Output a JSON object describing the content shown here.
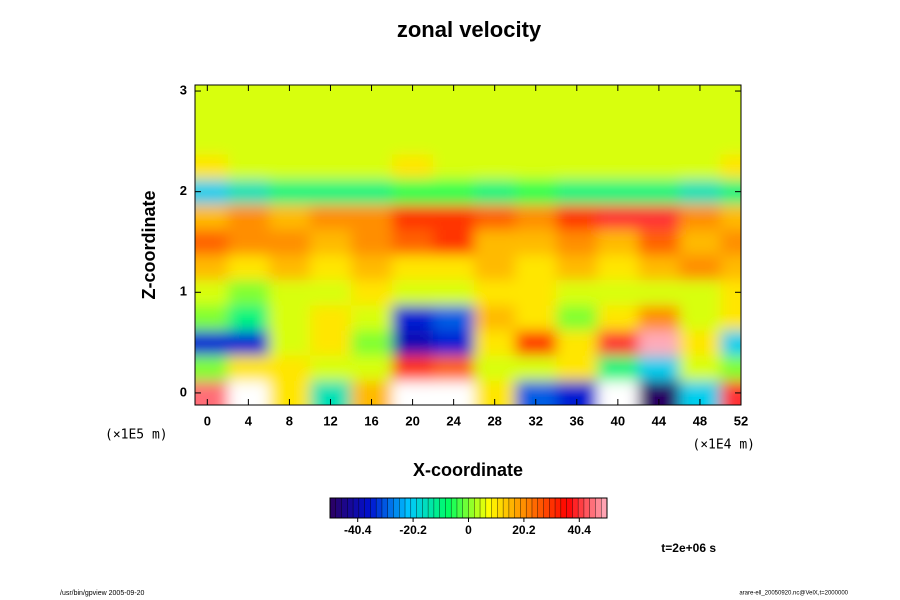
{
  "chart_data": {
    "type": "heatmap",
    "title": "zonal velocity",
    "x_label": "X-coordinate",
    "y_label": "Z-coordinate",
    "x_unit_note": "(×1E4 m)",
    "y_unit_note": "(×1E5 m)",
    "time_note": "t=2e+06 s",
    "footer_left": "/usr/bin/gpview 2005-09-20",
    "footer_right": "arare-ell_20050920.nc@VelX,t=2000000",
    "x": [
      0,
      4,
      8,
      12,
      16,
      20,
      24,
      28,
      32,
      36,
      40,
      44,
      48,
      52
    ],
    "y": [
      0,
      0.25,
      0.5,
      0.75,
      1,
      1.25,
      1.5,
      1.75,
      2,
      2.25,
      2.5,
      2.75,
      3
    ],
    "z": [
      [
        45,
        55,
        10,
        -15,
        15,
        55,
        55,
        10,
        -30,
        -35,
        -55,
        -50,
        -20,
        40
      ],
      [
        0,
        10,
        10,
        5,
        5,
        30,
        25,
        5,
        5,
        10,
        -10,
        -20,
        5,
        0
      ],
      [
        -35,
        -35,
        5,
        10,
        0,
        -40,
        -35,
        10,
        30,
        10,
        40,
        50,
        10,
        -20
      ],
      [
        0,
        -10,
        5,
        10,
        5,
        -35,
        -30,
        15,
        10,
        0,
        10,
        20,
        5,
        10
      ],
      [
        5,
        0,
        5,
        5,
        10,
        5,
        5,
        10,
        10,
        5,
        5,
        5,
        5,
        10
      ],
      [
        15,
        10,
        15,
        10,
        15,
        10,
        10,
        15,
        10,
        15,
        10,
        15,
        20,
        15
      ],
      [
        25,
        20,
        20,
        15,
        20,
        25,
        30,
        15,
        15,
        20,
        15,
        25,
        15,
        20
      ],
      [
        15,
        20,
        15,
        20,
        20,
        30,
        30,
        25,
        20,
        30,
        40,
        40,
        20,
        15
      ],
      [
        -20,
        -15,
        -10,
        -10,
        -10,
        -5,
        -5,
        -10,
        -5,
        -10,
        -10,
        -10,
        -15,
        -10
      ],
      [
        10,
        5,
        5,
        5,
        5,
        10,
        5,
        5,
        5,
        5,
        5,
        5,
        5,
        10
      ],
      [
        5,
        5,
        5,
        5,
        5,
        5,
        5,
        5,
        5,
        5,
        5,
        5,
        5,
        5
      ],
      [
        5,
        5,
        5,
        5,
        5,
        5,
        5,
        5,
        5,
        5,
        5,
        5,
        5,
        5
      ],
      [
        5,
        5,
        5,
        5,
        5,
        5,
        5,
        5,
        5,
        5,
        5,
        5,
        5,
        5
      ]
    ],
    "xlim": [
      -1.2,
      52
    ],
    "ylim": [
      -0.12,
      3.06
    ],
    "xticks": [
      0,
      4,
      8,
      12,
      16,
      20,
      24,
      28,
      32,
      36,
      40,
      44,
      48,
      52
    ],
    "yticks": [
      0,
      1,
      2,
      3
    ],
    "clim": [
      -50.5,
      50.5
    ],
    "cticks": [
      -40.4,
      -20.2,
      0,
      20.2,
      40.4
    ],
    "colorscale": [
      "#2c0060",
      "#0010d0",
      "#00c8ff",
      "#00ff60",
      "#ffff00",
      "#ff8000",
      "#ff0000",
      "#ffb0c0"
    ],
    "out_of_range_color": "#ffffff"
  }
}
